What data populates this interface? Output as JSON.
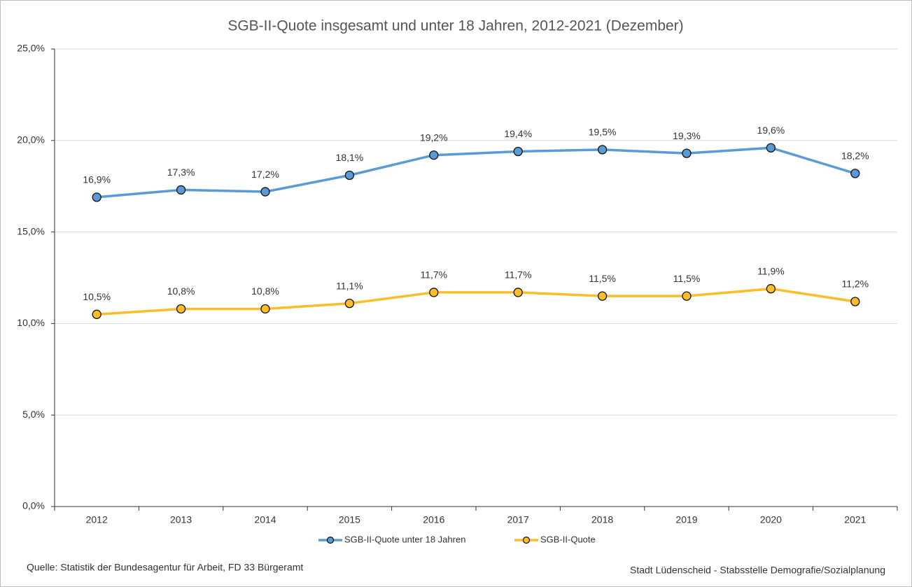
{
  "chart_data": {
    "type": "line",
    "title": "SGB-II-Quote insgesamt und unter 18 Jahren, 2012-2021 (Dezember)",
    "categories": [
      "2012",
      "2013",
      "2014",
      "2015",
      "2016",
      "2017",
      "2018",
      "2019",
      "2020",
      "2021"
    ],
    "series": [
      {
        "name": "SGB-II-Quote unter 18 Jahren",
        "color": "#5b9bd5",
        "values": [
          16.9,
          17.3,
          17.2,
          18.1,
          19.2,
          19.4,
          19.5,
          19.3,
          19.6,
          18.2
        ],
        "value_labels": [
          "16,9%",
          "17,3%",
          "17,2%",
          "18,1%",
          "19,2%",
          "19,4%",
          "19,5%",
          "19,3%",
          "19,6%",
          "18,2%"
        ]
      },
      {
        "name": "SGB-II-Quote",
        "color": "#fbbd2a",
        "values": [
          10.5,
          10.8,
          10.8,
          11.1,
          11.7,
          11.7,
          11.5,
          11.5,
          11.9,
          11.2
        ],
        "value_labels": [
          "10,5%",
          "10,8%",
          "10,8%",
          "11,1%",
          "11,7%",
          "11,7%",
          "11,5%",
          "11,5%",
          "11,9%",
          "11,2%"
        ]
      }
    ],
    "ylim": [
      0,
      25
    ],
    "yticks": [
      {
        "value": 0,
        "label": "0,0%"
      },
      {
        "value": 5,
        "label": "5,0%"
      },
      {
        "value": 10,
        "label": "10,0%"
      },
      {
        "value": 15,
        "label": "15,0%"
      },
      {
        "value": 20,
        "label": "20,0%"
      },
      {
        "value": 25,
        "label": "25,0%"
      }
    ],
    "grid": true,
    "legend": "bottom",
    "source": "Quelle: Statistik der Bundesagentur für Arbeit, FD 33 Bürgeramt",
    "credit": "Stadt Lüdenscheid - Stabsstelle Demografie/Sozialplanung"
  }
}
